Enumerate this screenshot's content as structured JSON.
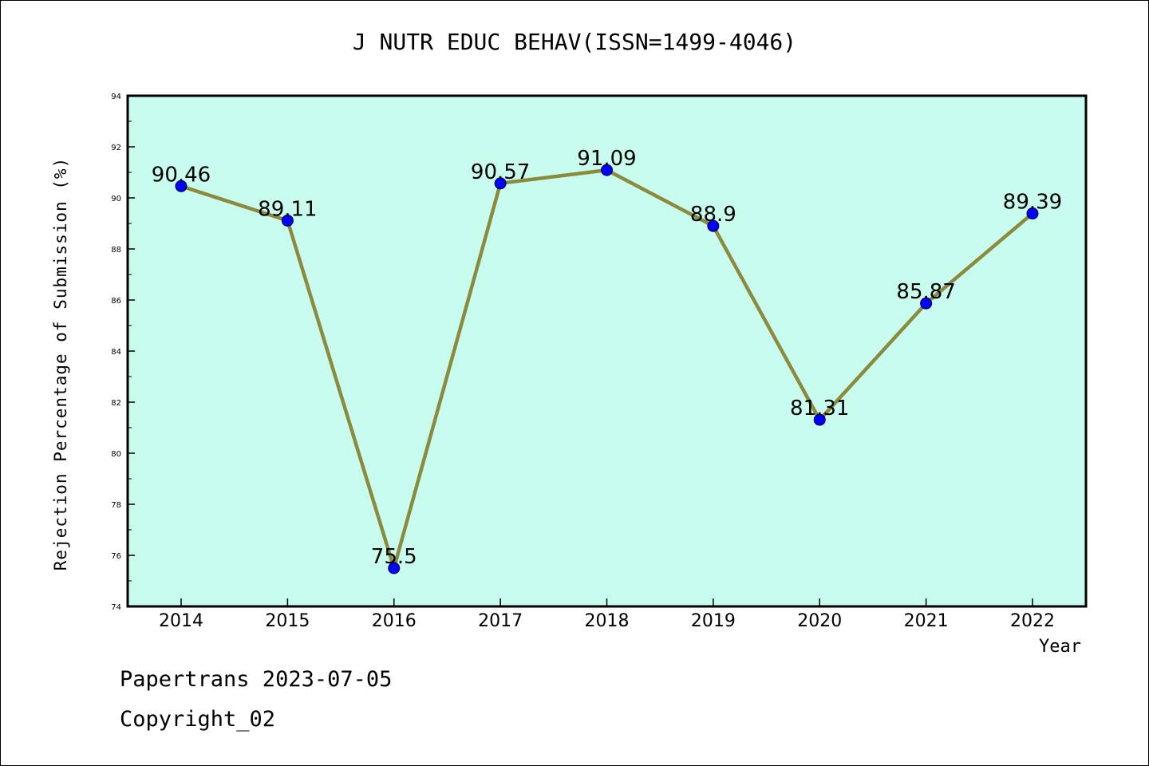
{
  "chart_data": {
    "type": "line",
    "title": "J NUTR EDUC BEHAV(ISSN=1499-4046)",
    "xlabel": "Year",
    "ylabel": "Rejection Percentage of Submission (%)",
    "categories": [
      "2014",
      "2015",
      "2016",
      "2017",
      "2018",
      "2019",
      "2020",
      "2021",
      "2022"
    ],
    "values": [
      90.46,
      89.11,
      75.5,
      90.57,
      91.09,
      88.9,
      81.31,
      85.87,
      89.39
    ],
    "data_labels": [
      "90.46",
      "89.11",
      "75.5",
      "90.57",
      "91.09",
      "88.9",
      "81.31",
      "85.87",
      "89.39"
    ],
    "y_ticks": [
      "74",
      "76",
      "78",
      "80",
      "82",
      "84",
      "86",
      "88",
      "90",
      "92",
      "94"
    ],
    "ylim": [
      74,
      94
    ],
    "grid": false,
    "colors": {
      "plot_background": "#c8fcee",
      "line": "#8c8a3c",
      "marker": "#0000ff"
    }
  },
  "footer": {
    "date_text": "Papertrans 2023-07-05",
    "copyright_text": "Copyright_02"
  }
}
